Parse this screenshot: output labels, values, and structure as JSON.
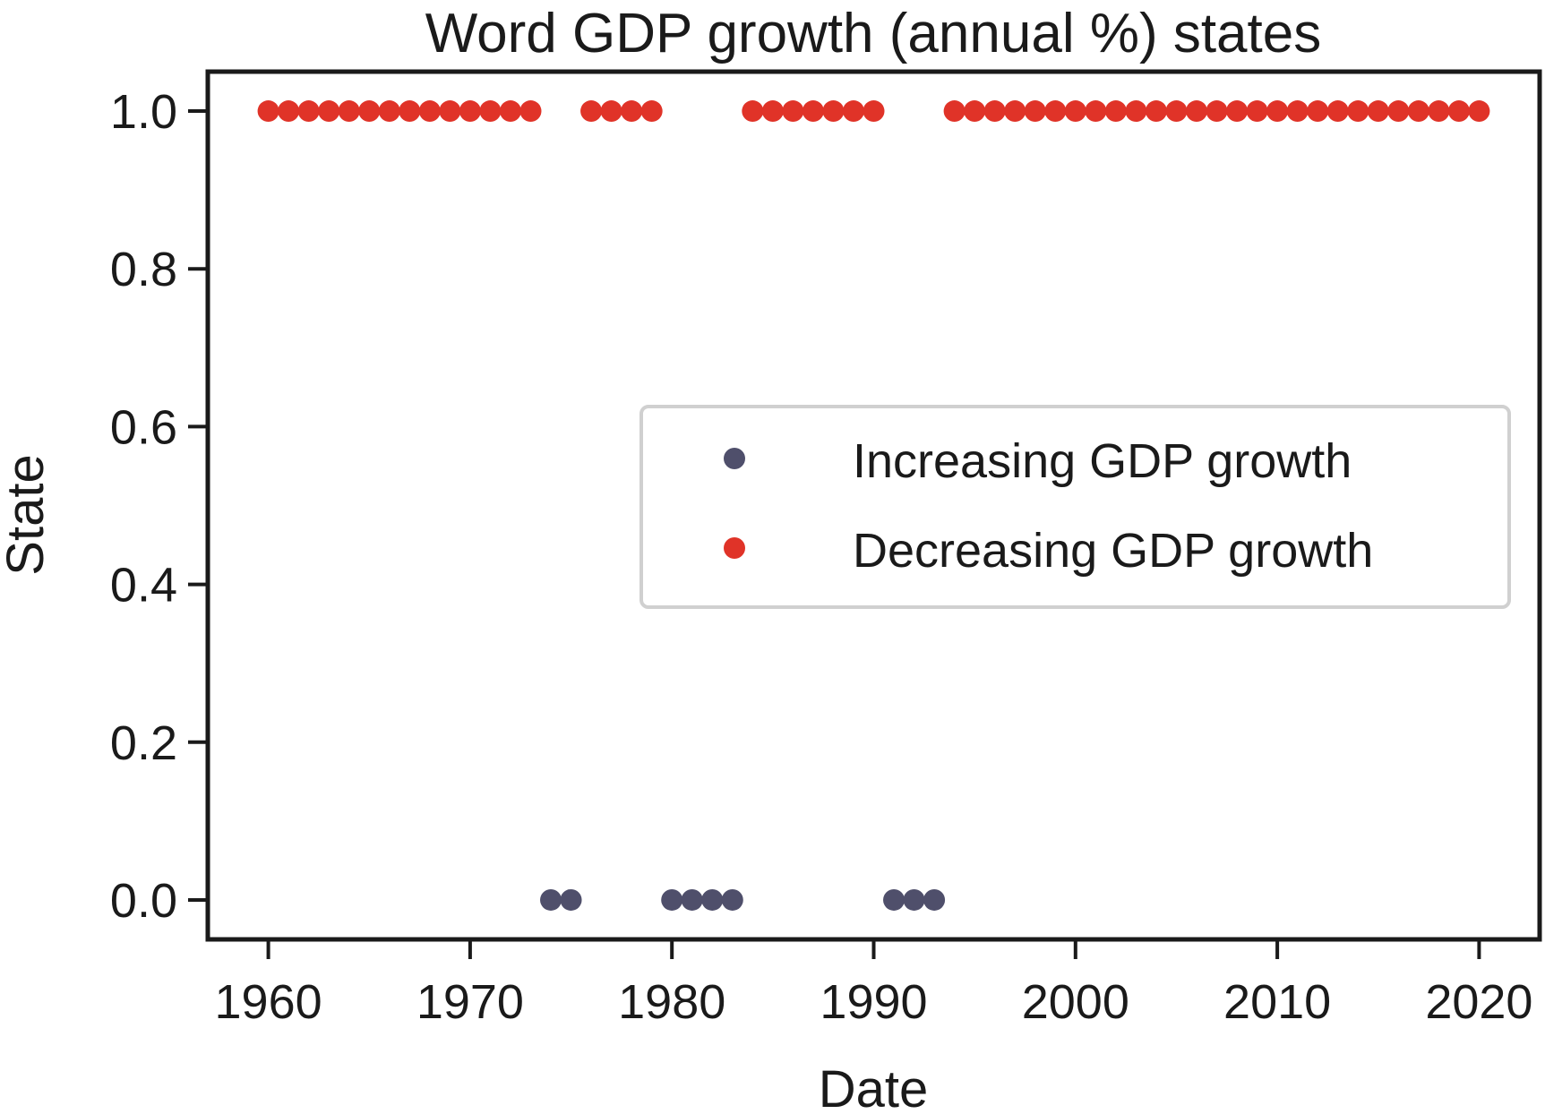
{
  "chart_data": {
    "type": "scatter",
    "title": "Word GDP growth (annual %) states",
    "xlabel": "Date",
    "ylabel": "State",
    "xlim": [
      1957,
      2023
    ],
    "ylim": [
      -0.05,
      1.05
    ],
    "xticks": [
      1960,
      1970,
      1980,
      1990,
      2000,
      2010,
      2020
    ],
    "yticks": [
      0.0,
      0.2,
      0.4,
      0.6,
      0.8,
      1.0
    ],
    "xtick_labels": [
      "1960",
      "1970",
      "1980",
      "1990",
      "2000",
      "2010",
      "2020"
    ],
    "ytick_labels": [
      "0.0",
      "0.2",
      "0.4",
      "0.6",
      "0.8",
      "1.0"
    ],
    "grid": false,
    "legend_position": "center-right",
    "series": [
      {
        "name": "Increasing GDP growth",
        "color": "#4f4f6b",
        "x": [
          1974,
          1975,
          1980,
          1981,
          1982,
          1983,
          1991,
          1992,
          1993
        ],
        "y": [
          0,
          0,
          0,
          0,
          0,
          0,
          0,
          0,
          0
        ]
      },
      {
        "name": "Decreasing GDP growth",
        "color": "#e03328",
        "x": [
          1960,
          1961,
          1962,
          1963,
          1964,
          1965,
          1966,
          1967,
          1968,
          1969,
          1970,
          1971,
          1972,
          1973,
          1976,
          1977,
          1978,
          1979,
          1984,
          1985,
          1986,
          1987,
          1988,
          1989,
          1990,
          1994,
          1995,
          1996,
          1997,
          1998,
          1999,
          2000,
          2001,
          2002,
          2003,
          2004,
          2005,
          2006,
          2007,
          2008,
          2009,
          2010,
          2011,
          2012,
          2013,
          2014,
          2015,
          2016,
          2017,
          2018,
          2019,
          2020
        ],
        "y": [
          1,
          1,
          1,
          1,
          1,
          1,
          1,
          1,
          1,
          1,
          1,
          1,
          1,
          1,
          1,
          1,
          1,
          1,
          1,
          1,
          1,
          1,
          1,
          1,
          1,
          1,
          1,
          1,
          1,
          1,
          1,
          1,
          1,
          1,
          1,
          1,
          1,
          1,
          1,
          1,
          1,
          1,
          1,
          1,
          1,
          1,
          1,
          1,
          1,
          1,
          1,
          1
        ]
      }
    ]
  }
}
